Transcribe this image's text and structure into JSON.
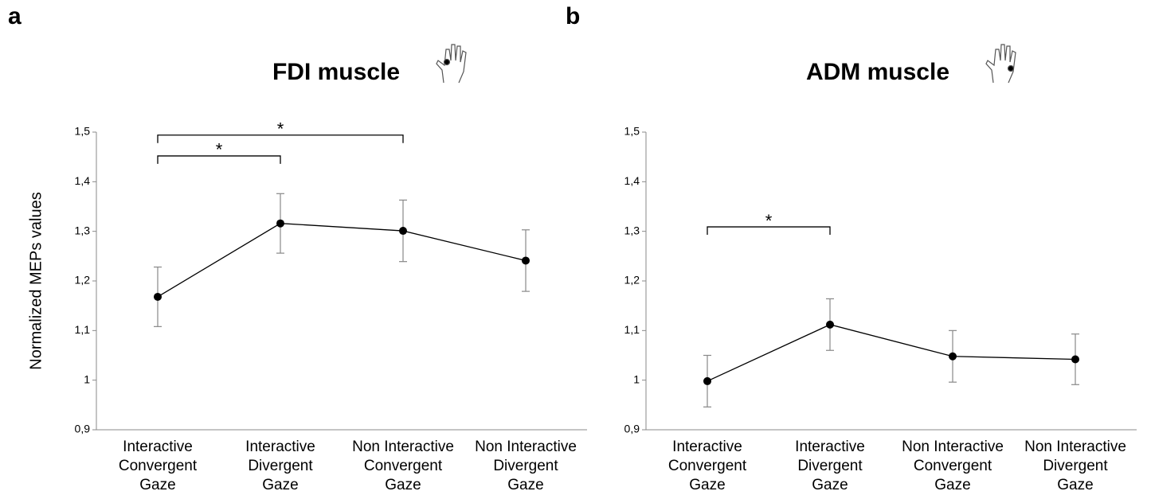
{
  "chart_data": [
    {
      "type": "line",
      "panel": "a",
      "title": "FDI muscle",
      "ylabel": "Normalized  MEPs values",
      "categories": [
        [
          "Interactive",
          "Convergent",
          "Gaze"
        ],
        [
          "Interactive",
          "Divergent",
          "Gaze"
        ],
        [
          "Non Interactive",
          "Convergent",
          "Gaze"
        ],
        [
          "Non Interactive",
          "Divergent",
          "Gaze"
        ]
      ],
      "values": [
        1.168,
        1.316,
        1.301,
        1.241
      ],
      "errors": [
        0.06,
        0.06,
        0.062,
        0.062
      ],
      "color": "#000000",
      "ylim": [
        0.9,
        1.5
      ],
      "yticks": [
        {
          "value": 0.9,
          "label": "0,9"
        },
        1,
        {
          "value": 1.1,
          "label": "1,1"
        },
        {
          "value": 1.2,
          "label": "1,2"
        },
        {
          "value": 1.3,
          "label": "1,3"
        },
        {
          "value": 1.4,
          "label": "1,4"
        },
        {
          "value": 1.5,
          "label": "1,5"
        }
      ],
      "annotations": [
        {
          "text": "*",
          "from": 0,
          "to": 1,
          "y": 1.452
        },
        {
          "text": "*",
          "from": 0,
          "to": 2,
          "y": 1.494
        }
      ]
    },
    {
      "type": "line",
      "panel": "b",
      "title": "ADM muscle",
      "categories": [
        [
          "Interactive",
          "Convergent",
          "Gaze"
        ],
        [
          "Interactive",
          "Divergent",
          "Gaze"
        ],
        [
          "Non Interactive",
          "Convergent",
          "Gaze"
        ],
        [
          "Non Interactive",
          "Divergent",
          "Gaze"
        ]
      ],
      "values": [
        0.998,
        1.112,
        1.048,
        1.042
      ],
      "errors": [
        0.052,
        0.052,
        0.052,
        0.051
      ],
      "color": "#000000",
      "ylim": [
        0.9,
        1.5
      ],
      "yticks": [
        {
          "value": 0.9,
          "label": "0,9"
        },
        1,
        {
          "value": 1.1,
          "label": "1,1"
        },
        {
          "value": 1.2,
          "label": "1,2"
        },
        {
          "value": 1.3,
          "label": "1,3"
        },
        {
          "value": 1.4,
          "label": "1,4"
        },
        {
          "value": 1.5,
          "label": "1,5"
        }
      ],
      "annotations": [
        {
          "text": "*",
          "from": 0,
          "to": 1,
          "y": 1.309
        }
      ]
    }
  ]
}
